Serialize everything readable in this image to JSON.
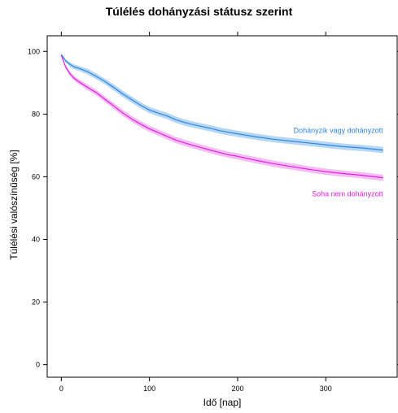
{
  "chart_data": {
    "type": "line",
    "title": "Túlélés dohányzási státusz szerint",
    "xlabel": "Idő [nap]",
    "ylabel": "Túlélési valószínűség [%]",
    "xlim": [
      -16,
      381
    ],
    "ylim": [
      -4,
      105
    ],
    "x_ticks": [
      0,
      100,
      200,
      300
    ],
    "y_ticks": [
      0,
      20,
      40,
      60,
      80,
      100
    ],
    "grid": false,
    "series": [
      {
        "name": "Dohányzik vagy dohányzott",
        "color": "#2E86DE",
        "band_color": "#A9CFF3",
        "x": [
          0,
          5,
          10,
          15,
          20,
          30,
          40,
          50,
          60,
          70,
          80,
          90,
          100,
          110,
          120,
          130,
          140,
          150,
          160,
          170,
          180,
          190,
          200,
          220,
          240,
          260,
          280,
          300,
          320,
          340,
          355,
          365
        ],
        "y": [
          99,
          97,
          95.8,
          95,
          94.6,
          93.5,
          92,
          90.3,
          88.4,
          86.4,
          84.6,
          82.8,
          81.3,
          80.3,
          79.4,
          78.2,
          77.3,
          76.6,
          76,
          75.4,
          74.7,
          74.2,
          73.7,
          72.8,
          72,
          71.4,
          70.8,
          70.2,
          69.6,
          69.2,
          68.8,
          68.5
        ],
        "ci_halfwidth": [
          0.3,
          0.5,
          0.7,
          0.8,
          0.8,
          0.9,
          0.9,
          0.9,
          1.0,
          1.0,
          1.0,
          1.0,
          1.0,
          1.0,
          1.0,
          1.0,
          1.0,
          1.0,
          1.0,
          1.0,
          1.0,
          1.0,
          1.0,
          1.0,
          1.0,
          1.0,
          1.0,
          1.0,
          1.0,
          1.0,
          1.0,
          1.0
        ]
      },
      {
        "name": "Soha nem dohányzott",
        "color": "#E020E0",
        "band_color": "#F3B1F3",
        "x": [
          0,
          5,
          10,
          15,
          20,
          30,
          40,
          50,
          60,
          70,
          80,
          90,
          100,
          110,
          120,
          130,
          140,
          150,
          160,
          170,
          180,
          190,
          200,
          220,
          240,
          260,
          280,
          300,
          320,
          340,
          355,
          365
        ],
        "y": [
          98.8,
          95,
          92.8,
          91.3,
          90.3,
          88.5,
          86.8,
          84.6,
          82.5,
          80.3,
          78.4,
          76.8,
          75.3,
          74.1,
          72.9,
          71.7,
          70.8,
          70,
          69.2,
          68.4,
          67.7,
          67,
          66.5,
          65.3,
          64.2,
          63.3,
          62.4,
          61.6,
          61,
          60.5,
          60,
          59.7
        ],
        "ci_halfwidth": [
          0.3,
          0.6,
          0.7,
          0.8,
          0.8,
          0.9,
          0.9,
          0.9,
          1.0,
          1.0,
          1.0,
          1.0,
          1.0,
          1.0,
          1.0,
          1.0,
          1.0,
          1.0,
          1.0,
          1.0,
          1.0,
          1.0,
          1.0,
          1.0,
          1.0,
          1.0,
          1.0,
          1.0,
          1.0,
          1.0,
          1.0,
          1.0
        ]
      }
    ]
  }
}
